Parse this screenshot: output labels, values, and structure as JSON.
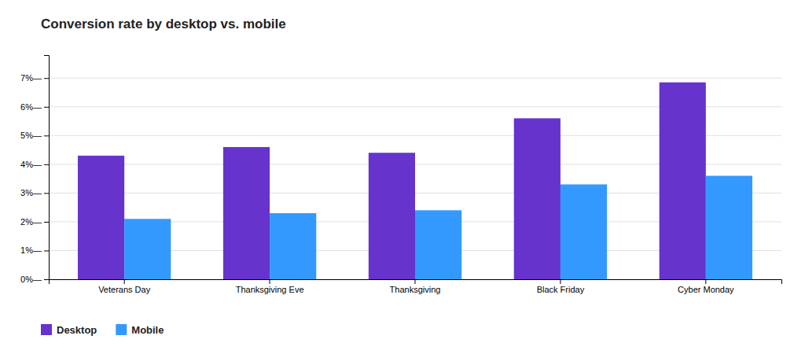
{
  "chart_data": {
    "type": "bar",
    "title": "Conversion rate by desktop vs. mobile",
    "categories": [
      "Veterans Day",
      "Thanksgiving Eve",
      "Thanksgiving",
      "Black Friday",
      "Cyber Monday"
    ],
    "series": [
      {
        "name": "Desktop",
        "color": "#6633cc",
        "values": [
          4.3,
          4.6,
          4.4,
          5.6,
          6.85
        ]
      },
      {
        "name": "Mobile",
        "color": "#3399ff",
        "values": [
          2.1,
          2.3,
          2.4,
          3.3,
          3.6
        ]
      }
    ],
    "ylim": [
      0,
      7.8
    ],
    "yticks": [
      {
        "value": 0,
        "label": "0%—"
      },
      {
        "value": 1,
        "label": "1%—"
      },
      {
        "value": 2,
        "label": "2%—"
      },
      {
        "value": 3,
        "label": "3%—"
      },
      {
        "value": 4,
        "label": "4%—"
      },
      {
        "value": 5,
        "label": "5%—"
      },
      {
        "value": 6,
        "label": "6%—"
      },
      {
        "value": 7,
        "label": "7%—"
      }
    ],
    "grid": true,
    "legend": "bottom"
  }
}
